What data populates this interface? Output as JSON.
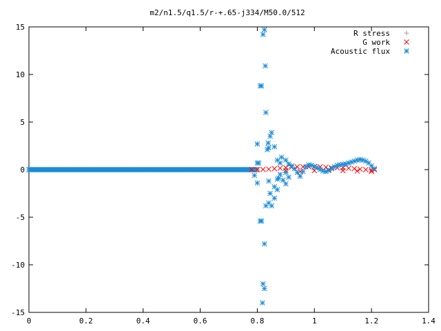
{
  "chart_data": {
    "type": "scatter",
    "title": "m2/n1.5/q1.5/r-+.65-j334/M50.0/512",
    "xlabel": "",
    "ylabel": "",
    "xlim": [
      0,
      1.4
    ],
    "ylim": [
      -15,
      15
    ],
    "xticks": [
      0,
      0.2,
      0.4,
      0.6,
      0.8,
      1,
      1.2,
      1.4
    ],
    "yticks": [
      -15,
      -10,
      -5,
      0,
      5,
      10,
      15
    ],
    "grid": false,
    "legend_position": "top-right",
    "series": [
      {
        "name": "R stress",
        "marker": "plus",
        "color": "#a0a0a0",
        "points": [
          [
            0.8,
            0.0
          ],
          [
            0.9,
            0.05
          ],
          [
            1.0,
            0.05
          ],
          [
            1.1,
            0.05
          ],
          [
            1.2,
            0.0
          ]
        ]
      },
      {
        "name": "G work",
        "marker": "cross",
        "color": "#ff0000",
        "points": [
          [
            0.78,
            0.0
          ],
          [
            0.8,
            0.0
          ],
          [
            0.82,
            0.02
          ],
          [
            0.84,
            0.05
          ],
          [
            0.86,
            0.1
          ],
          [
            0.88,
            0.15
          ],
          [
            0.9,
            0.2
          ],
          [
            0.92,
            0.25
          ],
          [
            0.94,
            0.3
          ],
          [
            0.96,
            0.3
          ],
          [
            0.98,
            0.3
          ],
          [
            1.0,
            0.3
          ],
          [
            1.02,
            0.3
          ],
          [
            1.04,
            0.25
          ],
          [
            1.06,
            0.2
          ],
          [
            1.08,
            0.2
          ],
          [
            1.1,
            0.2
          ],
          [
            1.12,
            0.15
          ],
          [
            1.14,
            0.1
          ],
          [
            1.16,
            0.05
          ],
          [
            1.18,
            0.0
          ],
          [
            1.2,
            -0.05
          ],
          [
            1.21,
            0.0
          ],
          [
            0.9,
            -0.1
          ],
          [
            0.95,
            -0.2
          ],
          [
            1.0,
            -0.1
          ],
          [
            1.05,
            0.0
          ],
          [
            1.1,
            -0.1
          ],
          [
            1.15,
            -0.15
          ],
          [
            1.2,
            -0.2
          ]
        ]
      },
      {
        "name": "Acoustic flux",
        "marker": "star",
        "color": "#1a8cd8",
        "points": [
          [
            0.805,
            0.7
          ],
          [
            0.8,
            0.7
          ],
          [
            0.8,
            2.7
          ],
          [
            0.81,
            8.8
          ],
          [
            0.815,
            8.8
          ],
          [
            0.82,
            14.2
          ],
          [
            0.825,
            14.7
          ],
          [
            0.828,
            10.9
          ],
          [
            0.83,
            6.0
          ],
          [
            0.835,
            2.1
          ],
          [
            0.84,
            2.3
          ],
          [
            0.838,
            2.8
          ],
          [
            0.845,
            3.5
          ],
          [
            0.85,
            3.9
          ],
          [
            0.86,
            2.4
          ],
          [
            0.87,
            1.0
          ],
          [
            0.88,
            0.7
          ],
          [
            0.885,
            1.3
          ],
          [
            0.9,
            1.0
          ],
          [
            0.91,
            0.6
          ],
          [
            0.92,
            0.4
          ],
          [
            0.93,
            0.1
          ],
          [
            0.94,
            -0.3
          ],
          [
            0.95,
            -0.7
          ],
          [
            0.96,
            -0.2
          ],
          [
            0.79,
            -0.6
          ],
          [
            0.8,
            -1.4
          ],
          [
            0.81,
            -5.4
          ],
          [
            0.815,
            -5.4
          ],
          [
            0.825,
            -7.8
          ],
          [
            0.83,
            -3.8
          ],
          [
            0.84,
            -3.5
          ],
          [
            0.845,
            -2.5
          ],
          [
            0.85,
            -3.8
          ],
          [
            0.86,
            -3.0
          ],
          [
            0.87,
            -1.0
          ],
          [
            0.88,
            -0.5
          ],
          [
            0.89,
            -1.1
          ],
          [
            0.9,
            -1.5
          ],
          [
            0.91,
            -0.8
          ],
          [
            0.82,
            -12.0
          ],
          [
            0.825,
            -12.5
          ],
          [
            0.818,
            -14.0
          ],
          [
            0.84,
            -1.2
          ],
          [
            0.86,
            -1.8
          ],
          [
            0.87,
            -2.1
          ],
          [
            0.875,
            -0.9
          ],
          [
            0.9,
            -0.3
          ],
          [
            0.97,
            0.3
          ],
          [
            0.98,
            0.5
          ],
          [
            0.99,
            0.45
          ],
          [
            1.0,
            0.35
          ],
          [
            1.01,
            0.2
          ],
          [
            1.02,
            0.0
          ],
          [
            1.03,
            -0.15
          ],
          [
            1.04,
            -0.2
          ],
          [
            1.05,
            -0.1
          ],
          [
            1.06,
            0.1
          ],
          [
            1.07,
            0.3
          ],
          [
            1.08,
            0.45
          ],
          [
            1.09,
            0.5
          ],
          [
            1.1,
            0.55
          ],
          [
            1.11,
            0.6
          ],
          [
            1.12,
            0.7
          ],
          [
            1.13,
            0.8
          ],
          [
            1.14,
            0.9
          ],
          [
            1.15,
            1.0
          ],
          [
            1.16,
            1.05
          ],
          [
            1.17,
            1.0
          ],
          [
            1.18,
            0.9
          ],
          [
            1.19,
            0.7
          ],
          [
            1.2,
            0.4
          ],
          [
            1.21,
            0.1
          ]
        ]
      }
    ],
    "baseline_series_name": "Acoustic flux",
    "baseline_x_range": [
      0,
      0.8
    ],
    "baseline_y": 0
  }
}
